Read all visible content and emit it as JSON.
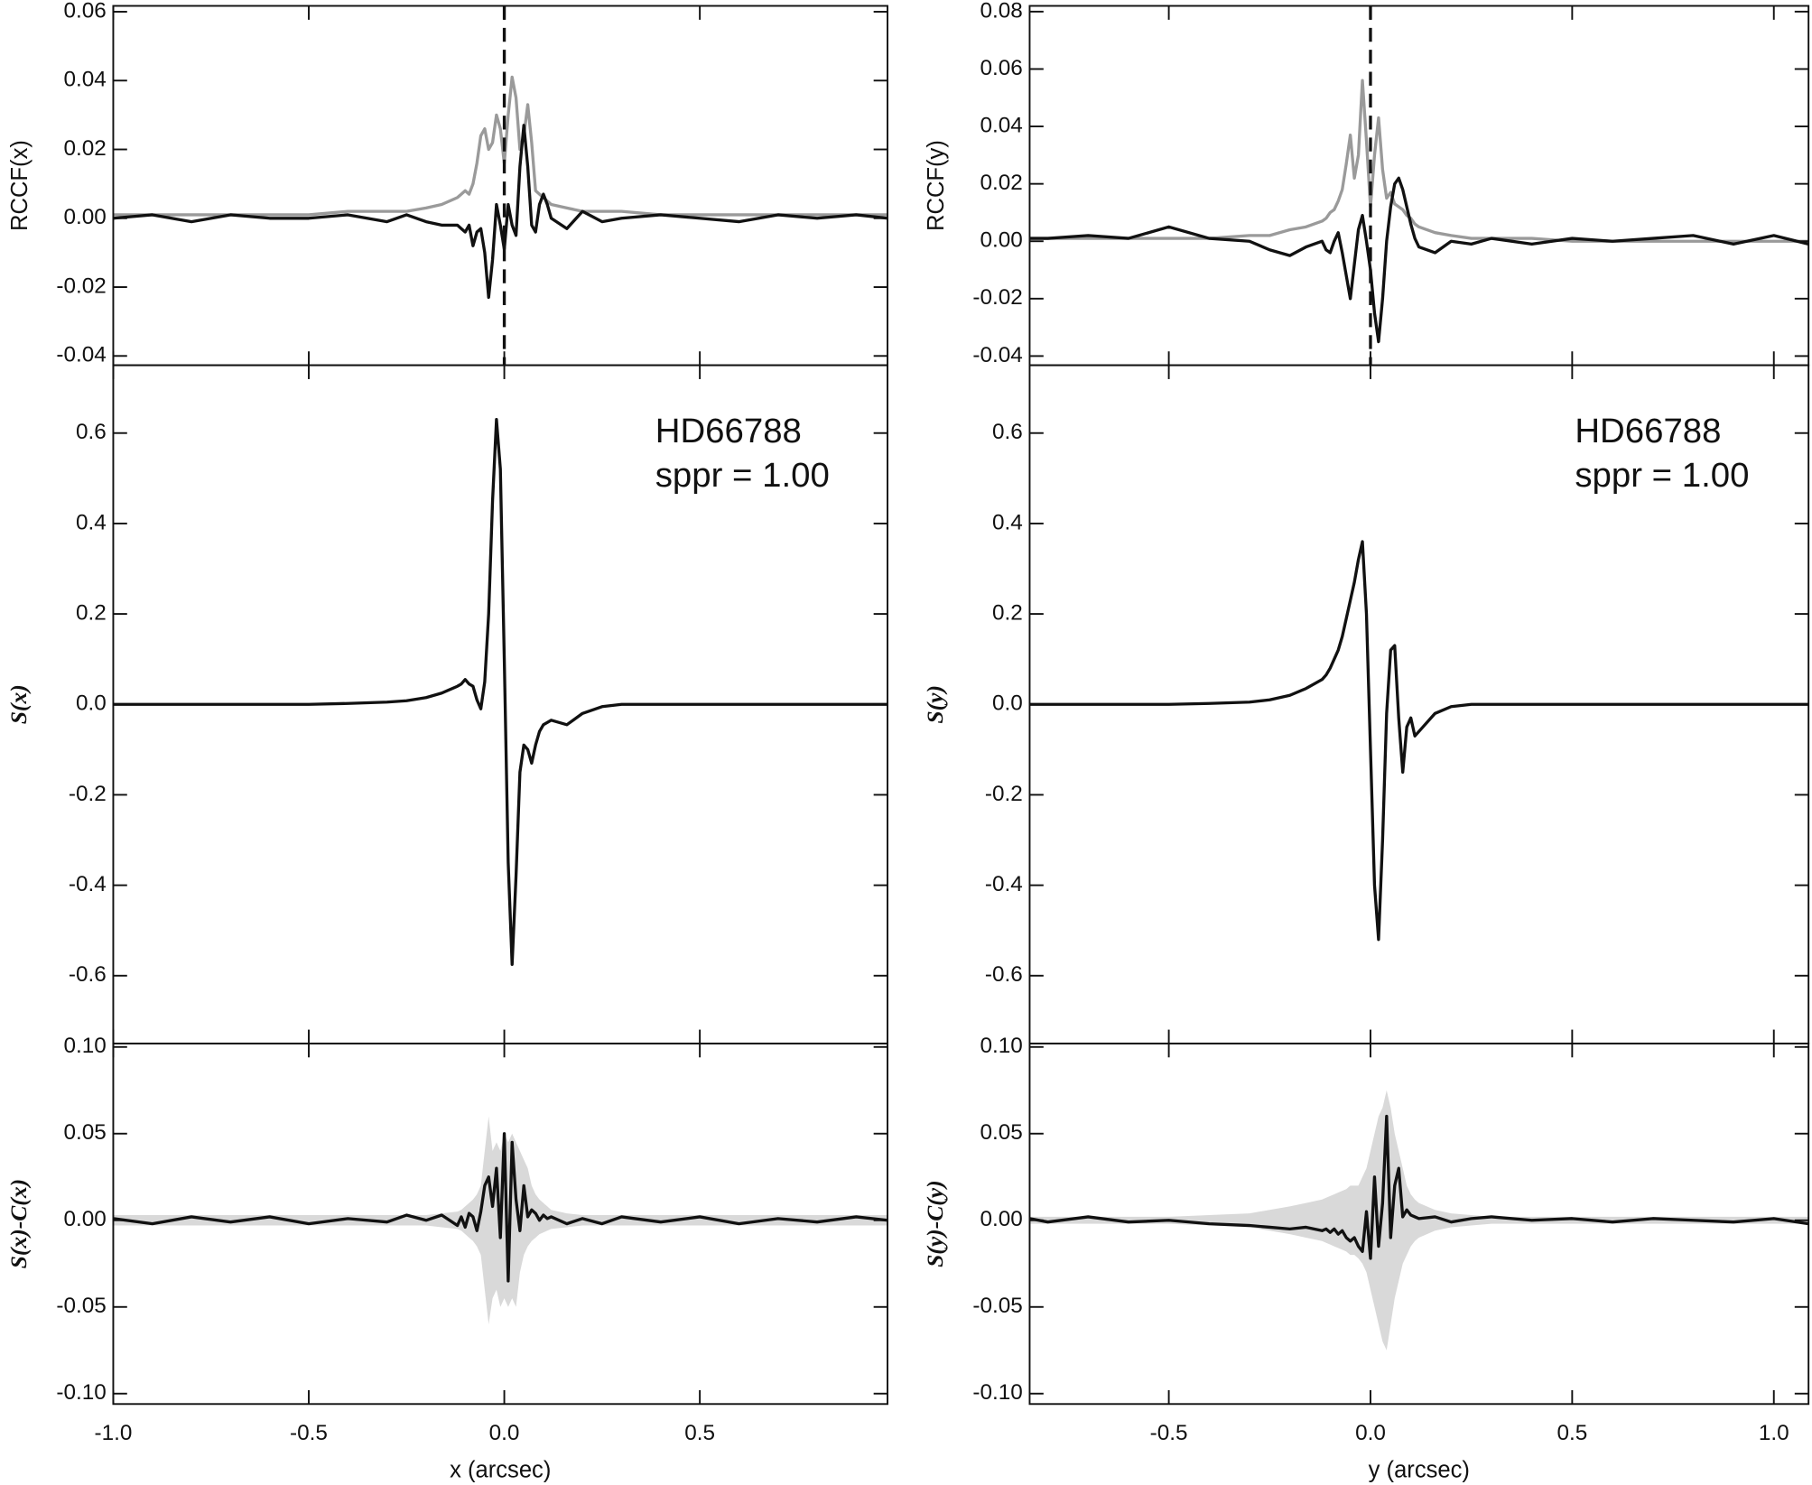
{
  "chart_data": [
    {
      "type": "line",
      "ylabel": "RCCF(x)",
      "xlim": [
        -1.0,
        0.98
      ],
      "ylim": [
        -0.0427,
        0.0617
      ],
      "xticks": [
        -1,
        -0.5,
        0,
        0.5
      ],
      "yticks": [
        0.06,
        0.04,
        0.02,
        {
          "value": 0,
          "label": "0.00"
        },
        -0.02,
        -0.04
      ],
      "vline": {
        "x": 0,
        "style": "dashed",
        "color": "#111111"
      },
      "x": [
        -1.0,
        -0.9,
        -0.8,
        -0.7,
        -0.6,
        -0.5,
        -0.4,
        -0.3,
        -0.25,
        -0.2,
        -0.16,
        -0.12,
        -0.11,
        -0.1,
        -0.09,
        -0.08,
        -0.07,
        -0.06,
        -0.05,
        -0.04,
        -0.03,
        -0.02,
        -0.01,
        0,
        0.01,
        0.02,
        0.03,
        0.04,
        0.05,
        0.06,
        0.07,
        0.08,
        0.09,
        0.1,
        0.11,
        0.12,
        0.16,
        0.2,
        0.25,
        0.3,
        0.4,
        0.5,
        0.6,
        0.7,
        0.8,
        0.9,
        0.98
      ],
      "series": [
        {
          "color": "#9a9a9a",
          "values": [
            0.001,
            0.001,
            0.001,
            0.001,
            0.001,
            0.001,
            0.002,
            0.002,
            0.002,
            0.003,
            0.004,
            0.006,
            0.007,
            0.008,
            0.007,
            0.01,
            0.016,
            0.024,
            0.026,
            0.02,
            0.022,
            0.03,
            0.026,
            0.016,
            0.03,
            0.041,
            0.035,
            0.02,
            0.024,
            0.033,
            0.022,
            0.008,
            0.007,
            0.006,
            0.005,
            0.004,
            0.003,
            0.002,
            0.002,
            0.002,
            0.001,
            0.001,
            0.001,
            0.001,
            0.001,
            0.001,
            0.001
          ]
        },
        {
          "color": "#111111",
          "values": [
            0.0,
            0.001,
            -0.001,
            0.001,
            0.0,
            0.0,
            0.001,
            -0.001,
            0.001,
            -0.001,
            -0.002,
            -0.002,
            -0.003,
            -0.004,
            -0.002,
            -0.008,
            -0.004,
            -0.003,
            -0.01,
            -0.023,
            -0.012,
            0.004,
            -0.002,
            -0.009,
            0.004,
            -0.002,
            -0.005,
            0.015,
            0.027,
            0.015,
            -0.002,
            -0.004,
            0.004,
            0.007,
            0.004,
            0.0,
            -0.003,
            0.002,
            -0.001,
            0.0,
            0.001,
            0.0,
            -0.001,
            0.001,
            0.0,
            0.001,
            0.0
          ]
        }
      ]
    },
    {
      "type": "line",
      "ylabel": "S(x)",
      "xlim": [
        -1.0,
        0.98
      ],
      "ylim": [
        -0.75,
        0.75
      ],
      "xticks": [
        -1,
        -0.5,
        0,
        0.5
      ],
      "yticks": [
        0.6,
        0.4,
        0.2,
        {
          "value": 0,
          "label": "0.0"
        },
        -0.2,
        -0.4,
        -0.6
      ],
      "annotations": [
        "HD66788",
        "sppr = 1.00"
      ],
      "x": [
        -1.0,
        -0.9,
        -0.8,
        -0.7,
        -0.6,
        -0.5,
        -0.4,
        -0.3,
        -0.25,
        -0.2,
        -0.16,
        -0.12,
        -0.11,
        -0.1,
        -0.09,
        -0.08,
        -0.07,
        -0.06,
        -0.05,
        -0.04,
        -0.03,
        -0.02,
        -0.01,
        0,
        0.01,
        0.02,
        0.03,
        0.04,
        0.05,
        0.06,
        0.07,
        0.08,
        0.09,
        0.1,
        0.11,
        0.12,
        0.16,
        0.2,
        0.25,
        0.3,
        0.4,
        0.5,
        0.6,
        0.7,
        0.8,
        0.9,
        0.98
      ],
      "series": [
        {
          "color": "#111111",
          "values": [
            0,
            0,
            0,
            0,
            0,
            0,
            0.002,
            0.005,
            0.008,
            0.015,
            0.025,
            0.04,
            0.045,
            0.055,
            0.045,
            0.04,
            0.01,
            -0.01,
            0.05,
            0.2,
            0.45,
            0.63,
            0.52,
            0.1,
            -0.35,
            -0.575,
            -0.38,
            -0.15,
            -0.09,
            -0.1,
            -0.13,
            -0.09,
            -0.06,
            -0.045,
            -0.04,
            -0.035,
            -0.045,
            -0.02,
            -0.005,
            0,
            0,
            0,
            0,
            0,
            0,
            0,
            0
          ]
        }
      ]
    },
    {
      "type": "line",
      "ylabel": "S(x)-C(x)",
      "xlabel": "x (arcsec)",
      "xlim": [
        -1.0,
        0.98
      ],
      "ylim": [
        -0.106,
        0.102
      ],
      "xticks": [
        {
          "value": -1,
          "label": "-1.0"
        },
        -0.5,
        {
          "value": 0,
          "label": "0.0"
        },
        0.5
      ],
      "yticks": [
        {
          "value": 0.1,
          "label": "0.10"
        },
        0.05,
        {
          "value": 0,
          "label": "0.00"
        },
        -0.05,
        {
          "value": -0.1,
          "label": "-0.10"
        }
      ],
      "x": [
        -1.0,
        -0.9,
        -0.8,
        -0.7,
        -0.6,
        -0.5,
        -0.4,
        -0.3,
        -0.25,
        -0.2,
        -0.16,
        -0.12,
        -0.11,
        -0.1,
        -0.09,
        -0.08,
        -0.07,
        -0.06,
        -0.05,
        -0.04,
        -0.03,
        -0.02,
        -0.01,
        0,
        0.01,
        0.02,
        0.03,
        0.04,
        0.05,
        0.06,
        0.07,
        0.08,
        0.09,
        0.1,
        0.11,
        0.12,
        0.16,
        0.2,
        0.25,
        0.3,
        0.4,
        0.5,
        0.6,
        0.7,
        0.8,
        0.9,
        0.98
      ],
      "band": {
        "color": "#d9d9d9",
        "upper": [
          0.003,
          0.003,
          0.003,
          0.003,
          0.003,
          0.003,
          0.003,
          0.003,
          0.003,
          0.003,
          0.004,
          0.005,
          0.006,
          0.008,
          0.01,
          0.012,
          0.015,
          0.02,
          0.04,
          0.06,
          0.04,
          0.045,
          0.04,
          0.05,
          0.045,
          0.05,
          0.045,
          0.04,
          0.035,
          0.03,
          0.02,
          0.015,
          0.012,
          0.01,
          0.008,
          0.006,
          0.004,
          0.003,
          0.003,
          0.003,
          0.003,
          0.003,
          0.003,
          0.003,
          0.003,
          0.003,
          0.003
        ],
        "lower": [
          -0.003,
          -0.003,
          -0.003,
          -0.003,
          -0.003,
          -0.003,
          -0.003,
          -0.003,
          -0.003,
          -0.003,
          -0.004,
          -0.005,
          -0.006,
          -0.008,
          -0.01,
          -0.012,
          -0.015,
          -0.02,
          -0.04,
          -0.06,
          -0.045,
          -0.04,
          -0.05,
          -0.045,
          -0.05,
          -0.045,
          -0.05,
          -0.03,
          -0.02,
          -0.015,
          -0.012,
          -0.01,
          -0.008,
          -0.007,
          -0.006,
          -0.005,
          -0.004,
          -0.003,
          -0.003,
          -0.003,
          -0.003,
          -0.003,
          -0.003,
          -0.003,
          -0.003,
          -0.003,
          -0.003
        ]
      },
      "series": [
        {
          "color": "#111111",
          "values": [
            0.001,
            -0.002,
            0.002,
            -0.001,
            0.002,
            -0.002,
            0.001,
            -0.001,
            0.003,
            0.0,
            0.003,
            -0.003,
            0.002,
            -0.004,
            0.004,
            0.002,
            -0.006,
            0.005,
            0.02,
            0.025,
            0.008,
            0.03,
            -0.01,
            0.05,
            -0.035,
            0.045,
            0.012,
            -0.006,
            0.02,
            0.002,
            0.006,
            0.004,
            0.0,
            0.003,
            0.001,
            0.002,
            -0.002,
            0.001,
            -0.002,
            0.002,
            -0.001,
            0.002,
            -0.002,
            0.001,
            -0.001,
            0.002,
            0.0
          ]
        }
      ]
    },
    {
      "type": "line",
      "ylabel": "RCCF(y)",
      "xlim": [
        -0.845,
        1.086
      ],
      "ylim": [
        -0.0432,
        0.082
      ],
      "xticks": [
        -0.5,
        0,
        0.5,
        1
      ],
      "yticks": [
        0.08,
        0.06,
        0.04,
        0.02,
        {
          "value": 0,
          "label": "0.00"
        },
        -0.02,
        -0.04
      ],
      "vline": {
        "x": 0,
        "style": "dashed",
        "color": "#111111"
      },
      "x": [
        -0.845,
        -0.8,
        -0.7,
        -0.6,
        -0.5,
        -0.4,
        -0.3,
        -0.25,
        -0.2,
        -0.16,
        -0.12,
        -0.11,
        -0.1,
        -0.09,
        -0.08,
        -0.07,
        -0.06,
        -0.05,
        -0.04,
        -0.03,
        -0.02,
        -0.01,
        0,
        0.01,
        0.02,
        0.03,
        0.04,
        0.05,
        0.06,
        0.07,
        0.08,
        0.09,
        0.1,
        0.11,
        0.12,
        0.16,
        0.2,
        0.25,
        0.3,
        0.4,
        0.5,
        0.6,
        0.7,
        0.8,
        0.9,
        1.0,
        1.086
      ],
      "series": [
        {
          "color": "#9a9a9a",
          "values": [
            0.001,
            0.001,
            0.001,
            0.001,
            0.001,
            0.001,
            0.002,
            0.002,
            0.004,
            0.005,
            0.007,
            0.008,
            0.01,
            0.011,
            0.014,
            0.018,
            0.027,
            0.037,
            0.022,
            0.03,
            0.056,
            0.035,
            0.012,
            0.03,
            0.043,
            0.025,
            0.015,
            0.017,
            0.013,
            0.012,
            0.011,
            0.009,
            0.008,
            0.006,
            0.005,
            0.003,
            0.002,
            0.001,
            0.001,
            0.001,
            0.0,
            0.0,
            0.0,
            0.0,
            0.0,
            0.0,
            0.0
          ]
        },
        {
          "color": "#111111",
          "values": [
            0.001,
            0.001,
            0.002,
            0.001,
            0.005,
            0.001,
            0.0,
            -0.003,
            -0.005,
            -0.002,
            0.0,
            -0.003,
            -0.004,
            0.0,
            0.003,
            -0.004,
            -0.012,
            -0.02,
            -0.008,
            0.004,
            0.009,
            0.0,
            -0.01,
            -0.025,
            -0.035,
            -0.02,
            0.0,
            0.012,
            0.02,
            0.022,
            0.018,
            0.012,
            0.006,
            0.001,
            -0.002,
            -0.004,
            0.0,
            -0.001,
            0.001,
            -0.001,
            0.001,
            0.0,
            0.001,
            0.002,
            -0.001,
            0.002,
            -0.001
          ]
        }
      ]
    },
    {
      "type": "line",
      "ylabel": "S(y)",
      "xlim": [
        -0.845,
        1.086
      ],
      "ylim": [
        -0.75,
        0.75
      ],
      "xticks": [
        -0.5,
        0,
        0.5,
        1
      ],
      "yticks": [
        0.6,
        0.4,
        0.2,
        {
          "value": 0,
          "label": "0.0"
        },
        -0.2,
        -0.4,
        -0.6
      ],
      "annotations": [
        "HD66788",
        "sppr = 1.00"
      ],
      "x": [
        -0.845,
        -0.8,
        -0.7,
        -0.6,
        -0.5,
        -0.4,
        -0.3,
        -0.25,
        -0.2,
        -0.16,
        -0.12,
        -0.11,
        -0.1,
        -0.09,
        -0.08,
        -0.07,
        -0.06,
        -0.05,
        -0.04,
        -0.03,
        -0.02,
        -0.01,
        0,
        0.01,
        0.02,
        0.03,
        0.04,
        0.05,
        0.06,
        0.07,
        0.08,
        0.09,
        0.1,
        0.11,
        0.12,
        0.16,
        0.2,
        0.25,
        0.3,
        0.4,
        0.5,
        0.6,
        0.7,
        0.8,
        0.9,
        1.0,
        1.086
      ],
      "series": [
        {
          "color": "#111111",
          "values": [
            0,
            0,
            0,
            0,
            0,
            0.002,
            0.005,
            0.01,
            0.02,
            0.035,
            0.055,
            0.065,
            0.08,
            0.1,
            0.12,
            0.15,
            0.19,
            0.23,
            0.27,
            0.32,
            0.36,
            0.2,
            -0.1,
            -0.4,
            -0.52,
            -0.3,
            -0.02,
            0.12,
            0.13,
            -0.03,
            -0.15,
            -0.05,
            -0.03,
            -0.07,
            -0.06,
            -0.02,
            -0.005,
            0,
            0,
            0,
            0,
            0,
            0,
            0,
            0,
            0,
            0
          ]
        }
      ]
    },
    {
      "type": "line",
      "ylabel": "S(y)-C(y)",
      "xlabel": "y (arcsec)",
      "xlim": [
        -0.845,
        1.086
      ],
      "ylim": [
        -0.106,
        0.102
      ],
      "xticks": [
        -0.5,
        {
          "value": 0,
          "label": "0.0"
        },
        0.5,
        {
          "value": 1,
          "label": "1.0"
        }
      ],
      "yticks": [
        {
          "value": 0.1,
          "label": "0.10"
        },
        0.05,
        {
          "value": 0,
          "label": "0.00"
        },
        -0.05,
        {
          "value": -0.1,
          "label": "-0.10"
        }
      ],
      "x": [
        -0.845,
        -0.8,
        -0.7,
        -0.6,
        -0.5,
        -0.4,
        -0.3,
        -0.25,
        -0.2,
        -0.16,
        -0.12,
        -0.11,
        -0.1,
        -0.09,
        -0.08,
        -0.07,
        -0.06,
        -0.05,
        -0.04,
        -0.03,
        -0.02,
        -0.01,
        0,
        0.01,
        0.02,
        0.03,
        0.04,
        0.05,
        0.06,
        0.07,
        0.08,
        0.09,
        0.1,
        0.11,
        0.12,
        0.16,
        0.2,
        0.25,
        0.3,
        0.4,
        0.5,
        0.6,
        0.7,
        0.8,
        0.9,
        1.0,
        1.086
      ],
      "band": {
        "color": "#d9d9d9",
        "upper": [
          0.002,
          0.002,
          0.002,
          0.002,
          0.002,
          0.003,
          0.004,
          0.006,
          0.008,
          0.01,
          0.012,
          0.013,
          0.014,
          0.015,
          0.016,
          0.017,
          0.018,
          0.02,
          0.02,
          0.02,
          0.025,
          0.03,
          0.04,
          0.05,
          0.06,
          0.065,
          0.075,
          0.065,
          0.05,
          0.04,
          0.03,
          0.02,
          0.015,
          0.012,
          0.01,
          0.006,
          0.004,
          0.003,
          0.002,
          0.002,
          0.002,
          0.002,
          0.002,
          0.002,
          0.002,
          0.002,
          0.002
        ],
        "lower": [
          -0.002,
          -0.002,
          -0.002,
          -0.002,
          -0.002,
          -0.003,
          -0.004,
          -0.006,
          -0.008,
          -0.01,
          -0.012,
          -0.013,
          -0.014,
          -0.015,
          -0.016,
          -0.017,
          -0.018,
          -0.02,
          -0.02,
          -0.022,
          -0.025,
          -0.03,
          -0.04,
          -0.05,
          -0.06,
          -0.07,
          -0.075,
          -0.06,
          -0.045,
          -0.035,
          -0.025,
          -0.02,
          -0.015,
          -0.012,
          -0.01,
          -0.006,
          -0.004,
          -0.003,
          -0.002,
          -0.002,
          -0.002,
          -0.002,
          -0.002,
          -0.002,
          -0.002,
          -0.002,
          -0.002
        ]
      },
      "series": [
        {
          "color": "#111111",
          "values": [
            0.001,
            -0.001,
            0.002,
            -0.001,
            0.0,
            -0.002,
            -0.003,
            -0.004,
            -0.005,
            -0.004,
            -0.006,
            -0.005,
            -0.007,
            -0.005,
            -0.008,
            -0.006,
            -0.01,
            -0.012,
            -0.01,
            -0.015,
            -0.018,
            0.005,
            -0.022,
            0.025,
            -0.015,
            0.01,
            0.06,
            -0.01,
            0.02,
            0.03,
            0.002,
            0.006,
            0.003,
            0.002,
            0.001,
            0.002,
            -0.001,
            0.001,
            0.002,
            0.0,
            0.001,
            -0.001,
            0.001,
            0.0,
            -0.001,
            0.001,
            -0.002
          ]
        }
      ]
    }
  ]
}
